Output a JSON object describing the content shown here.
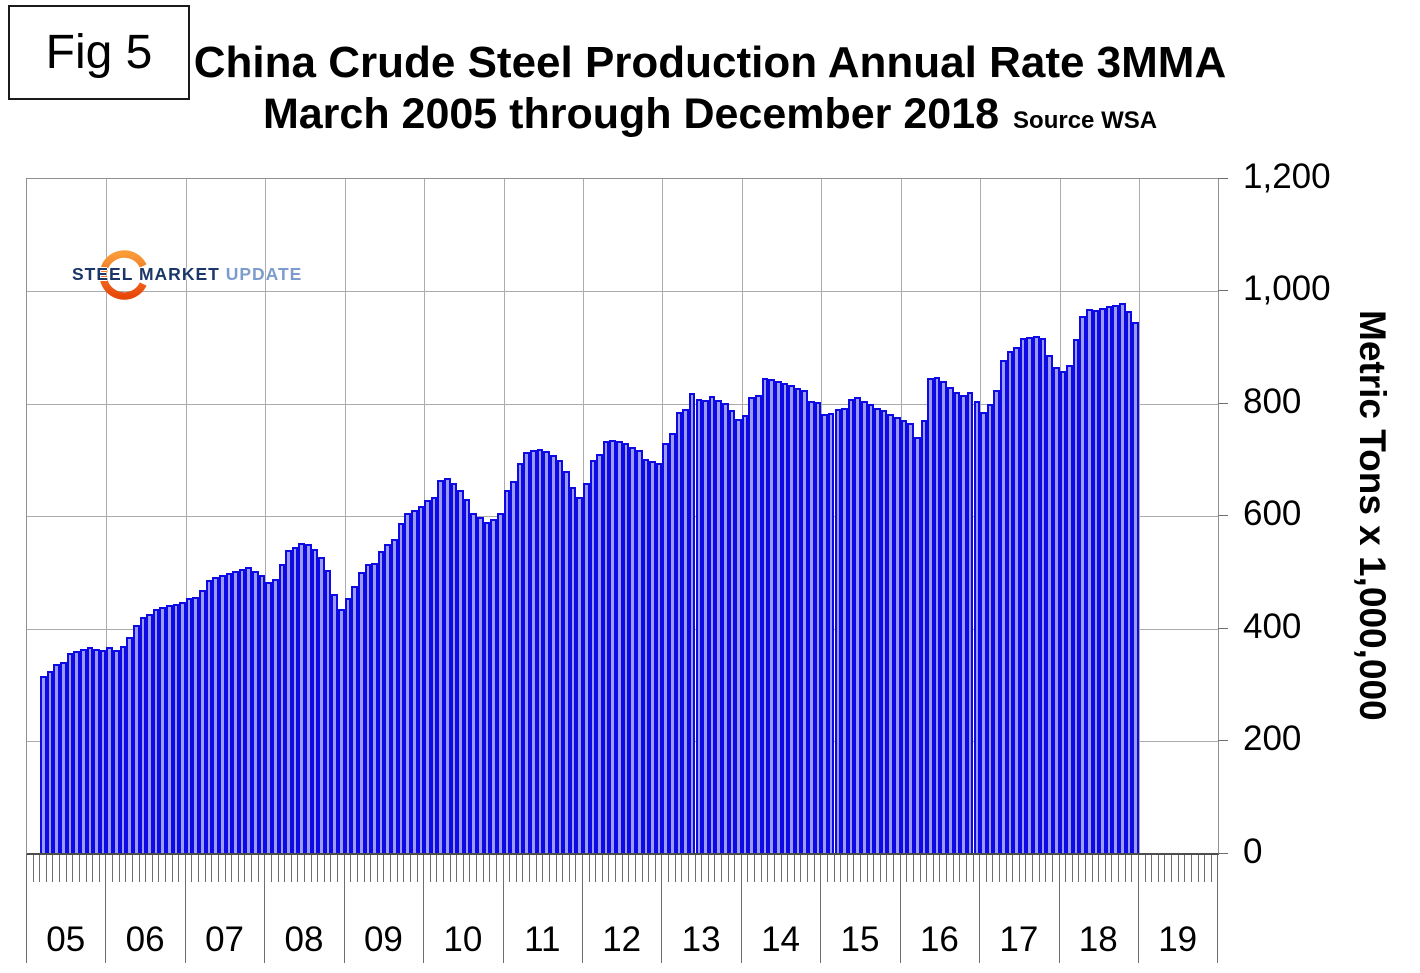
{
  "figure_label": "Fig 5",
  "title": {
    "line1": "China Crude Steel Production Annual Rate 3MMA",
    "line2": "March 2005 through December 2018",
    "source": "Source WSA"
  },
  "logo": {
    "word1": "STEEL",
    "word2": "MARKET",
    "word3": "UPDATE",
    "text_color": "#1b3768",
    "update_color": "#7d9cce",
    "swoosh_top_color": "#F99C38",
    "swoosh_bottom_color": "#E8470B"
  },
  "y_axis": {
    "title": "Metric Tons x 1,000,000",
    "tick_labels": [
      "1,200",
      "1,000",
      "800",
      "600",
      "400",
      "200",
      "0"
    ],
    "tick_values": [
      1200,
      1000,
      800,
      600,
      400,
      200,
      0
    ]
  },
  "x_axis": {
    "year_labels": [
      "05",
      "06",
      "07",
      "08",
      "09",
      "10",
      "11",
      "12",
      "13",
      "14",
      "15",
      "16",
      "17",
      "18",
      "19"
    ]
  },
  "colors": {
    "bar_fill": "#9B9AF5",
    "bar_border": "#0E0AE3",
    "gridline": "#ababab",
    "frame": "#909090",
    "axis_line": "#4d4d4d",
    "tick": "#6e6e6e"
  },
  "chart_data": {
    "type": "bar",
    "title": "China Crude Steel Production Annual Rate 3MMA",
    "subtitle": "March 2005 through December 2018",
    "source": "Source WSA",
    "ylabel": "Metric Tons x 1,000,000",
    "xlabel": "",
    "ylim": [
      0,
      1200
    ],
    "grid": true,
    "start_month": "2005-03",
    "end_month": "2018-12",
    "x_year_slots": [
      "05",
      "06",
      "07",
      "08",
      "09",
      "10",
      "11",
      "12",
      "13",
      "14",
      "15",
      "16",
      "17",
      "18",
      "19"
    ],
    "series": [
      {
        "name": "China crude steel production annual rate, 3-month moving average (million metric tons)",
        "data_by_year": [
          {
            "year": 2005,
            "first_month": 3,
            "values": [
              315,
              324,
              337,
              340,
              356,
              360,
              363,
              367,
              364,
              362
            ]
          },
          {
            "year": 2006,
            "first_month": 1,
            "values": [
              367,
              362,
              369,
              385,
              407,
              420,
              425,
              435,
              438,
              442,
              444,
              447
            ]
          },
          {
            "year": 2007,
            "first_month": 1,
            "values": [
              455,
              457,
              468,
              486,
              492,
              496,
              499,
              502,
              506,
              510,
              503,
              495
            ]
          },
          {
            "year": 2008,
            "first_month": 1,
            "values": [
              483,
              489,
              514,
              539,
              545,
              552,
              551,
              542,
              527,
              505,
              462,
              434
            ]
          },
          {
            "year": 2009,
            "first_month": 1,
            "values": [
              454,
              476,
              500,
              515,
              517,
              538,
              551,
              560,
              587,
              605,
              610,
              618
            ]
          },
          {
            "year": 2010,
            "first_month": 1,
            "values": [
              628,
              634,
              665,
              667,
              659,
              646,
              631,
              605,
              599,
              590,
              594,
              605
            ]
          },
          {
            "year": 2011,
            "first_month": 1,
            "values": [
              647,
              663,
              694,
              714,
              717,
              719,
              716,
              708,
              700,
              681,
              651,
              634
            ]
          },
          {
            "year": 2012,
            "first_month": 1,
            "values": [
              659,
              699,
              711,
              733,
              735,
              733,
              730,
              722,
              717,
              702,
              698,
              695
            ]
          },
          {
            "year": 2013,
            "first_month": 1,
            "values": [
              730,
              748,
              785,
              791,
              818,
              809,
              806,
              813,
              807,
              801,
              788,
              773
            ]
          },
          {
            "year": 2014,
            "first_month": 1,
            "values": [
              780,
              812,
              815,
              846,
              843,
              840,
              836,
              833,
              827,
              824,
              805,
              802
            ]
          },
          {
            "year": 2015,
            "first_month": 1,
            "values": [
              782,
              783,
              790,
              793,
              809,
              811,
              805,
              800,
              793,
              788,
              782,
              777
            ]
          },
          {
            "year": 2016,
            "first_month": 1,
            "values": [
              771,
              765,
              741,
              770,
              845,
              848,
              840,
              829,
              820,
              816,
              821,
              805
            ]
          },
          {
            "year": 2017,
            "first_month": 1,
            "values": [
              785,
              800,
              825,
              877,
              894,
              901,
              916,
              919,
              920,
              917,
              886,
              865
            ]
          },
          {
            "year": 2018,
            "first_month": 1,
            "values": [
              858,
              868,
              915,
              955,
              968,
              966,
              970,
              974,
              976,
              979,
              964,
              945
            ]
          }
        ]
      }
    ]
  }
}
